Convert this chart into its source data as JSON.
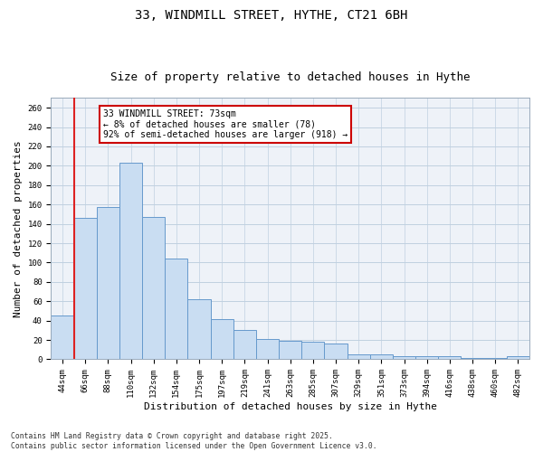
{
  "title_line1": "33, WINDMILL STREET, HYTHE, CT21 6BH",
  "title_line2": "Size of property relative to detached houses in Hythe",
  "xlabel": "Distribution of detached houses by size in Hythe",
  "ylabel": "Number of detached properties",
  "categories": [
    "44sqm",
    "66sqm",
    "88sqm",
    "110sqm",
    "132sqm",
    "154sqm",
    "175sqm",
    "197sqm",
    "219sqm",
    "241sqm",
    "263sqm",
    "285sqm",
    "307sqm",
    "329sqm",
    "351sqm",
    "373sqm",
    "394sqm",
    "416sqm",
    "438sqm",
    "460sqm",
    "482sqm"
  ],
  "values": [
    45,
    146,
    157,
    203,
    147,
    104,
    62,
    42,
    30,
    21,
    19,
    18,
    16,
    5,
    5,
    3,
    3,
    3,
    1,
    1,
    3
  ],
  "bar_color": "#c9ddf2",
  "bar_edge_color": "#6699cc",
  "bar_linewidth": 0.7,
  "vline_x": 1.0,
  "vline_color": "#dd2222",
  "annotation_text": "33 WINDMILL STREET: 73sqm\n← 8% of detached houses are smaller (78)\n92% of semi-detached houses are larger (918) →",
  "annotation_box_color": "#ffffff",
  "annotation_box_edge_color": "#cc0000",
  "ylim": [
    0,
    270
  ],
  "yticks": [
    0,
    20,
    40,
    60,
    80,
    100,
    120,
    140,
    160,
    180,
    200,
    220,
    240,
    260
  ],
  "grid_color": "#c0d0e0",
  "bg_color": "#eef2f8",
  "footer_line1": "Contains HM Land Registry data © Crown copyright and database right 2025.",
  "footer_line2": "Contains public sector information licensed under the Open Government Licence v3.0.",
  "title_fontsize": 10,
  "subtitle_fontsize": 9,
  "tick_fontsize": 6.5,
  "label_fontsize": 8,
  "annotation_fontsize": 7,
  "footer_fontsize": 5.8
}
